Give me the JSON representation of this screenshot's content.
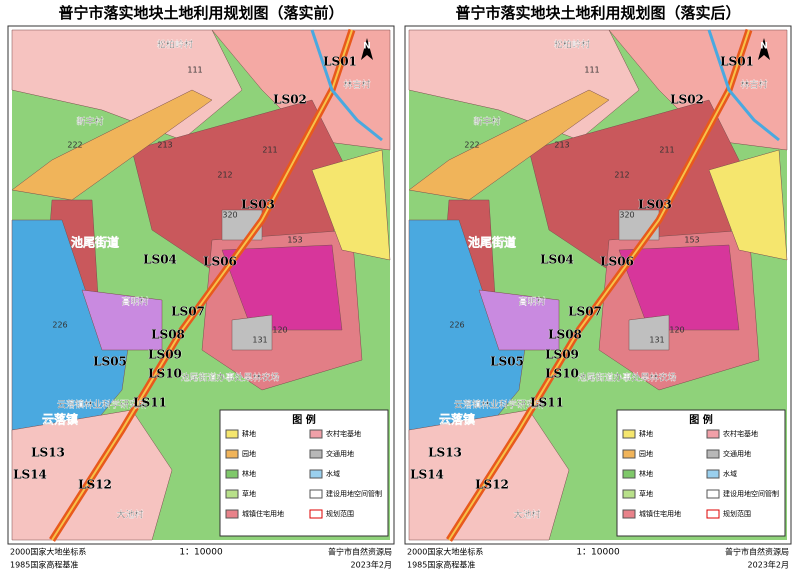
{
  "panels": [
    {
      "title": "普宁市落实地块土地利用规划图（落实前）"
    },
    {
      "title": "普宁市落实地块土地利用规划图（落实后）"
    }
  ],
  "north": "N",
  "plots": [
    "LS01",
    "LS02",
    "LS03",
    "LS04",
    "LS05",
    "LS06",
    "LS07",
    "LS08",
    "LS09",
    "LS10",
    "LS11",
    "LS12",
    "LS13",
    "LS14"
  ],
  "places": [
    "松柏岭村",
    "林吉村",
    "新丰村",
    "池尾街道",
    "高明村",
    "云落镇林业科学研究所",
    "云落镇",
    "池尾街道办事处果林农场",
    "大池村"
  ],
  "codes": [
    "111",
    "222",
    "213",
    "212",
    "211",
    "320",
    "153",
    "226",
    "120",
    "131"
  ],
  "legend": {
    "title": "图  例",
    "items": [
      "耕地",
      "园地",
      "林地",
      "草地",
      "城镇住宅用地",
      "农村宅基地",
      "交通用地",
      "水域",
      "建设用地空间管制",
      "规划范围"
    ]
  },
  "footer": {
    "crs": "2000国家大地坐标系",
    "height": "1985国家高程基准",
    "scale": "1：10000",
    "org": "普宁市自然资源局",
    "date": "2023年2月"
  }
}
